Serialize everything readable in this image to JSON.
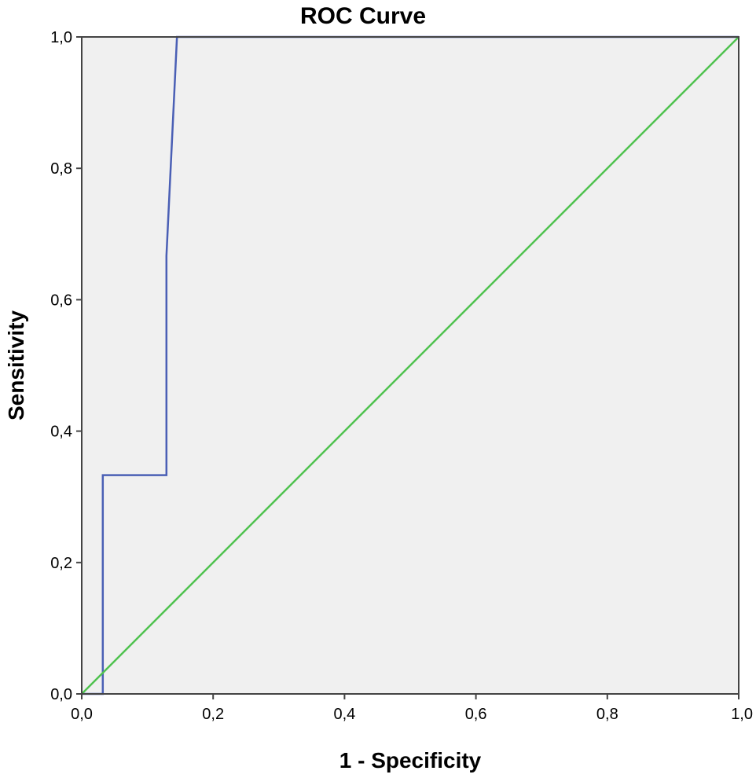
{
  "chart_data": {
    "type": "line",
    "title": "ROC Curve",
    "xlabel": "1 - Specificity",
    "ylabel": "Sensitivity",
    "xlim": [
      0,
      1
    ],
    "ylim": [
      0,
      1
    ],
    "xticks": [
      "0,0",
      "0,2",
      "0,4",
      "0,6",
      "0,8",
      "1,0"
    ],
    "yticks": [
      "0,0",
      "0,2",
      "0,4",
      "0,6",
      "0,8",
      "1,0"
    ],
    "grid": false,
    "background_color": "#f0f0f0",
    "series": [
      {
        "color": "#4a5fb5",
        "x": [
          0.0,
          0.032,
          0.032,
          0.129,
          0.129,
          0.145,
          1.0
        ],
        "y": [
          0.0,
          0.0,
          0.333,
          0.333,
          0.667,
          1.0,
          1.0
        ]
      },
      {
        "color": "#4fc24f",
        "x": [
          0.0,
          1.0
        ],
        "y": [
          0.0,
          1.0
        ]
      }
    ]
  }
}
